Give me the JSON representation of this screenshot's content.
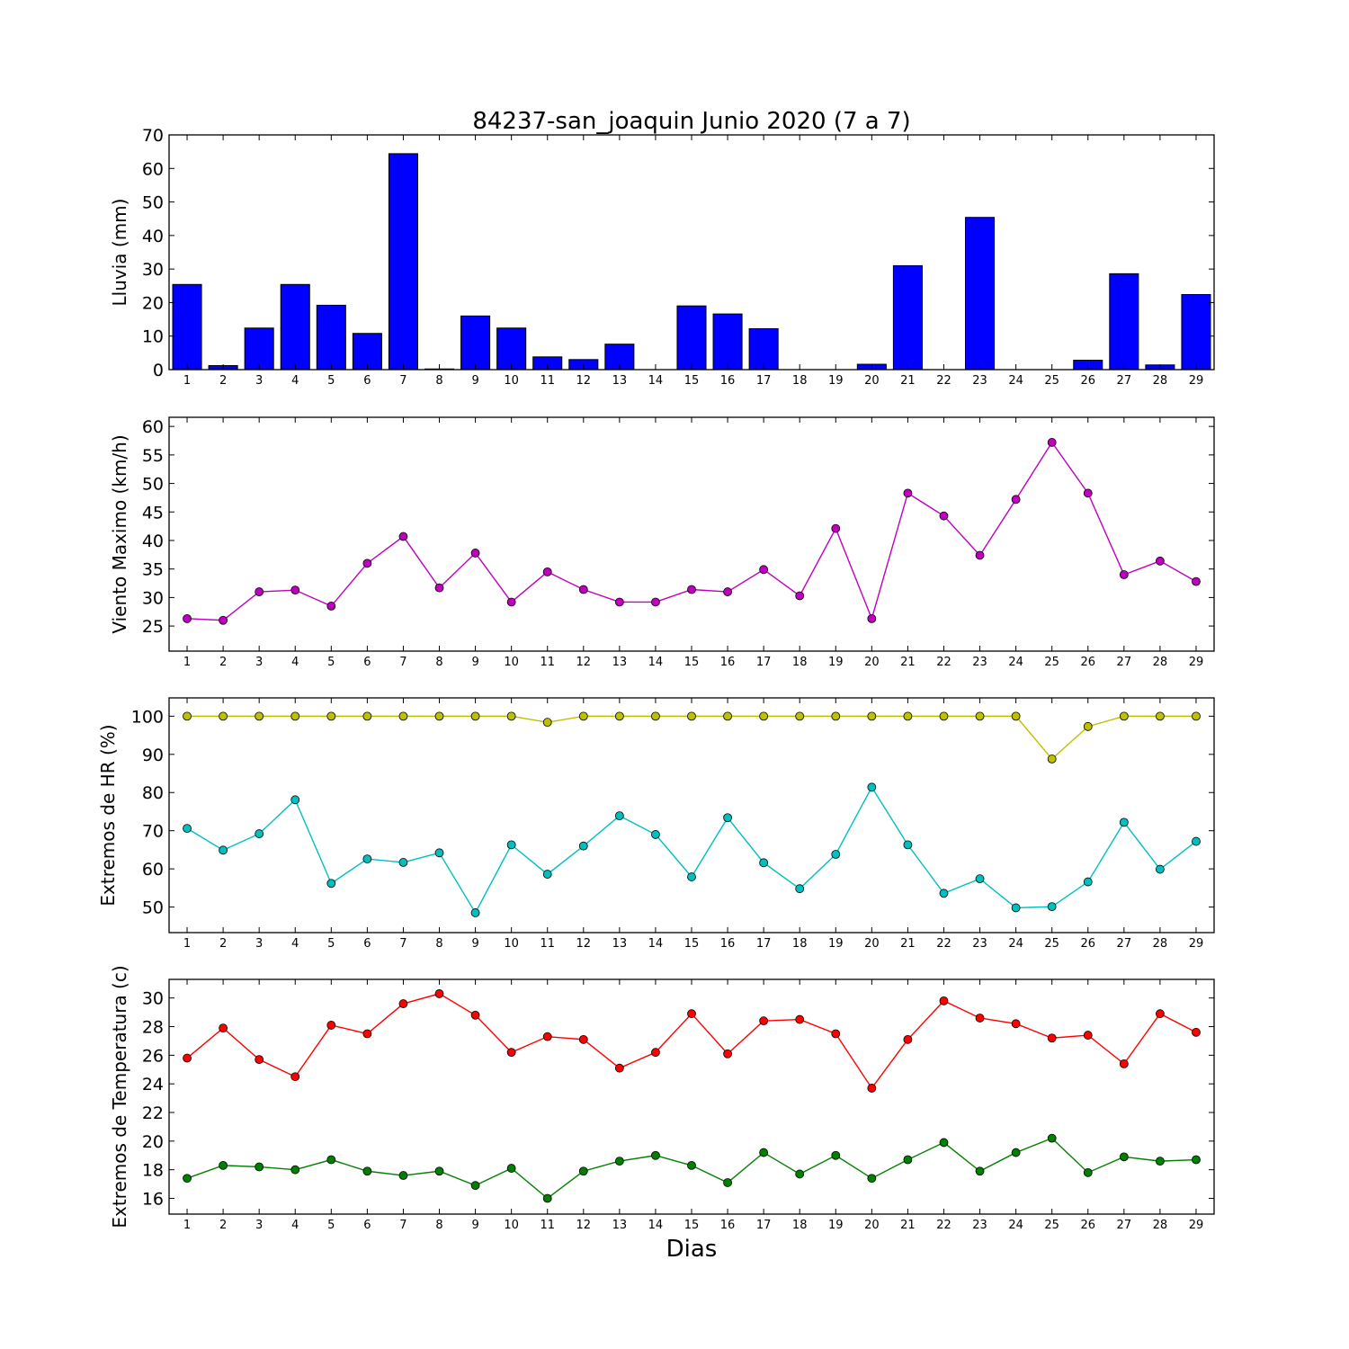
{
  "title": "84237-san_joaquin Junio 2020  (7 a 7)",
  "xlabel": "Dias",
  "chart_data": [
    {
      "type": "bar",
      "ylabel": "Lluvia (mm)",
      "ylim": [
        0,
        70
      ],
      "yticks": [
        0,
        10,
        20,
        30,
        40,
        50,
        60,
        70
      ],
      "x": [
        1,
        2,
        3,
        4,
        5,
        6,
        7,
        8,
        9,
        10,
        11,
        12,
        13,
        14,
        15,
        16,
        17,
        18,
        19,
        20,
        21,
        22,
        23,
        24,
        25,
        26,
        27,
        28,
        29
      ],
      "series": [
        {
          "color": "#0000ff",
          "values": [
            25.4,
            1.2,
            12.4,
            25.4,
            19.2,
            10.8,
            64.4,
            0.2,
            16.0,
            12.4,
            3.8,
            3.0,
            7.6,
            0.0,
            19.0,
            16.6,
            12.2,
            0.0,
            0.0,
            1.6,
            31.0,
            0.0,
            45.4,
            0.0,
            0.0,
            2.8,
            28.6,
            1.4,
            22.4
          ]
        }
      ]
    },
    {
      "type": "line",
      "ylabel": "Viento Maximo (km/h)",
      "ylim": [
        20.6,
        61.6
      ],
      "yticks": [
        25,
        30,
        35,
        40,
        45,
        50,
        55,
        60
      ],
      "x": [
        1,
        2,
        3,
        4,
        5,
        6,
        7,
        8,
        9,
        10,
        11,
        12,
        13,
        14,
        15,
        16,
        17,
        18,
        19,
        20,
        21,
        22,
        23,
        24,
        25,
        26,
        27,
        28,
        29
      ],
      "series": [
        {
          "color": "#bf00bf",
          "values": [
            26.3,
            26.0,
            31.0,
            31.3,
            28.5,
            36.0,
            40.7,
            31.7,
            37.8,
            29.2,
            34.5,
            31.4,
            29.2,
            29.2,
            31.4,
            31.0,
            34.9,
            30.3,
            42.1,
            26.3,
            48.3,
            44.3,
            37.4,
            47.2,
            57.2,
            48.3,
            34.0,
            36.4,
            32.8
          ]
        }
      ]
    },
    {
      "type": "line",
      "ylabel": "Extremos de HR (%)",
      "ylim": [
        43.3,
        104.8
      ],
      "yticks": [
        50,
        60,
        70,
        80,
        90,
        100
      ],
      "x": [
        1,
        2,
        3,
        4,
        5,
        6,
        7,
        8,
        9,
        10,
        11,
        12,
        13,
        14,
        15,
        16,
        17,
        18,
        19,
        20,
        21,
        22,
        23,
        24,
        25,
        26,
        27,
        28,
        29
      ],
      "series": [
        {
          "color": "#bfbf00",
          "values": [
            100,
            100,
            100,
            100,
            100,
            100,
            100,
            100,
            100,
            100,
            98.4,
            100,
            100,
            100,
            100,
            100,
            100,
            100,
            100,
            100,
            100,
            100,
            100,
            100,
            88.8,
            97.3,
            100,
            100,
            100
          ]
        },
        {
          "color": "#00bfbf",
          "values": [
            70.6,
            64.9,
            69.2,
            78.1,
            56.2,
            62.6,
            61.7,
            64.2,
            48.5,
            66.3,
            58.6,
            66.0,
            73.9,
            69.0,
            57.9,
            73.4,
            61.6,
            54.8,
            63.8,
            81.4,
            66.3,
            53.6,
            57.4,
            49.8,
            50.1,
            56.6,
            72.2,
            59.9,
            67.2
          ]
        }
      ]
    },
    {
      "type": "line",
      "ylabel": "Extremos de Temperatura (c)",
      "ylim": [
        14.9,
        31.3
      ],
      "yticks": [
        16,
        18,
        20,
        22,
        24,
        26,
        28,
        30
      ],
      "x": [
        1,
        2,
        3,
        4,
        5,
        6,
        7,
        8,
        9,
        10,
        11,
        12,
        13,
        14,
        15,
        16,
        17,
        18,
        19,
        20,
        21,
        22,
        23,
        24,
        25,
        26,
        27,
        28,
        29
      ],
      "series": [
        {
          "color": "#ff0000",
          "values": [
            25.8,
            27.9,
            25.7,
            24.5,
            28.1,
            27.5,
            29.6,
            30.3,
            28.8,
            26.2,
            27.3,
            27.1,
            25.1,
            26.2,
            28.9,
            26.1,
            28.4,
            28.5,
            27.5,
            23.7,
            27.1,
            29.8,
            28.6,
            28.2,
            27.2,
            27.4,
            25.4,
            28.9,
            27.6
          ]
        },
        {
          "color": "#008000",
          "values": [
            17.4,
            18.3,
            18.2,
            18.0,
            18.7,
            17.9,
            17.6,
            17.9,
            16.9,
            18.1,
            16.0,
            17.9,
            18.6,
            19.0,
            18.3,
            17.1,
            19.2,
            17.7,
            19.0,
            17.4,
            18.7,
            19.9,
            17.9,
            19.2,
            20.2,
            17.8,
            18.9,
            18.6,
            18.7
          ]
        }
      ]
    }
  ]
}
